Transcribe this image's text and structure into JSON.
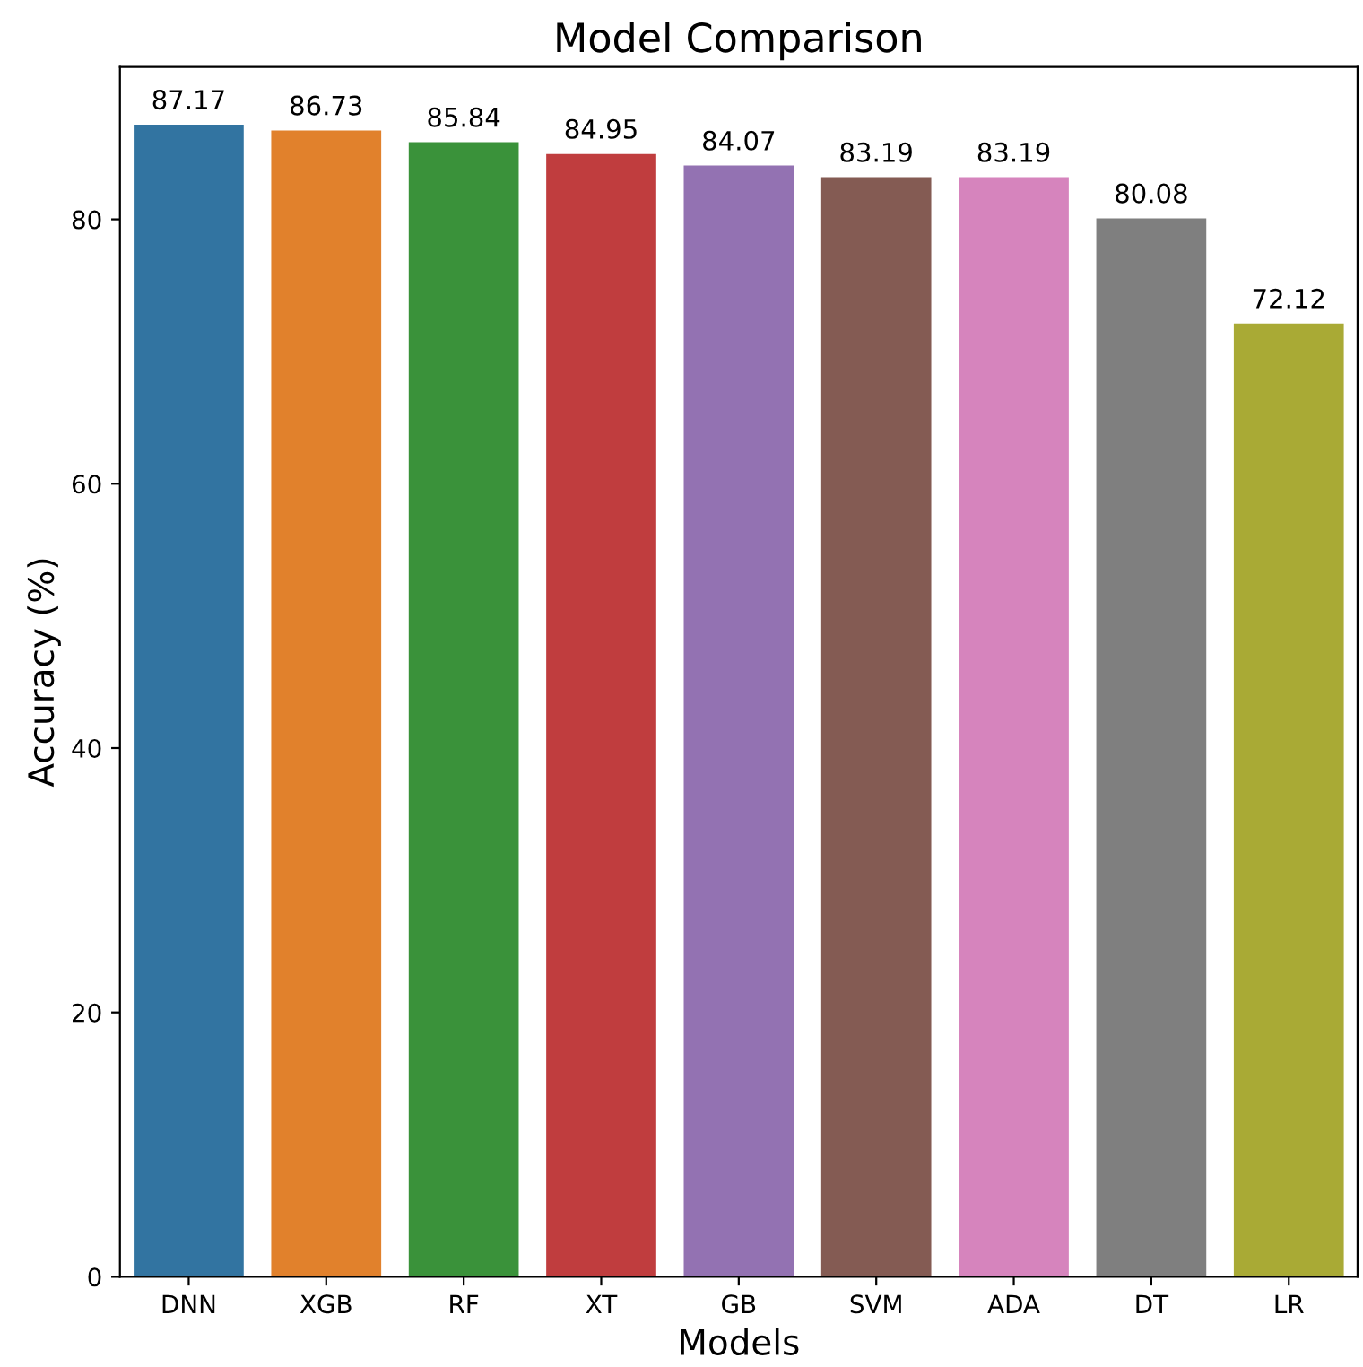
{
  "chart_data": {
    "type": "bar",
    "title": "Model Comparison",
    "xlabel": "Models",
    "ylabel": "Accuracy (%)",
    "categories": [
      "DNN",
      "XGB",
      "RF",
      "XT",
      "GB",
      "SVM",
      "ADA",
      "DT",
      "LR"
    ],
    "values": [
      87.17,
      86.73,
      85.84,
      84.95,
      84.07,
      83.19,
      83.19,
      80.08,
      72.12
    ],
    "colors": [
      "#3274a1",
      "#e1812c",
      "#3a923a",
      "#c03d3e",
      "#9372b2",
      "#845b53",
      "#d684bd",
      "#7f7f7f",
      "#a9aa35"
    ],
    "ylim": [
      0,
      91.53
    ],
    "yticks": [
      0,
      20,
      40,
      60,
      80
    ],
    "data_labels": true
  }
}
